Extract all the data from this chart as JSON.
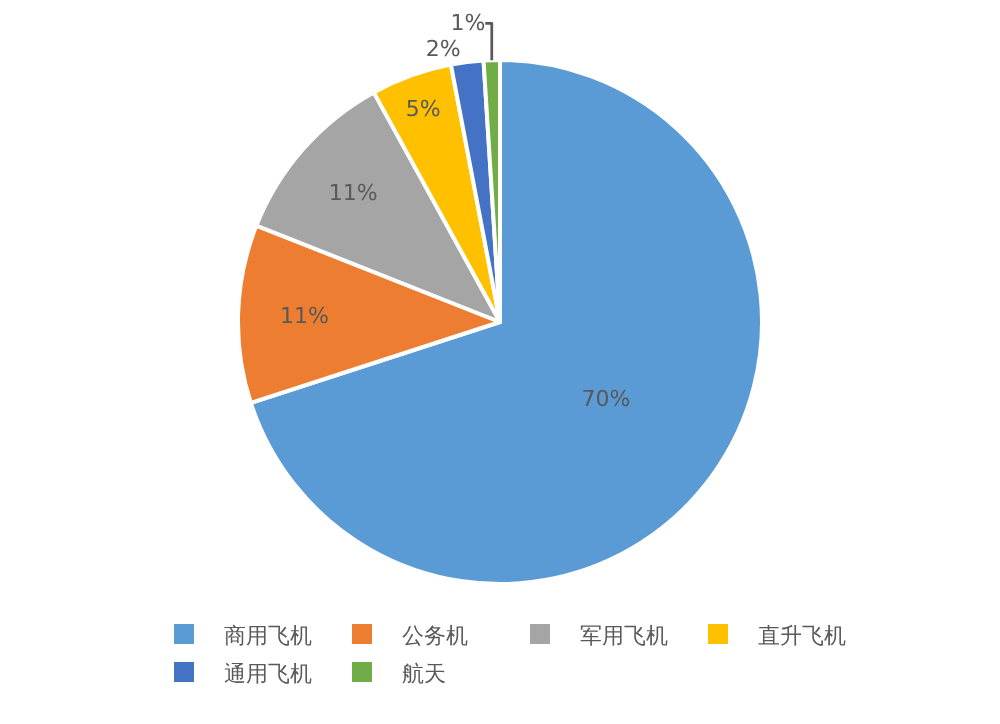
{
  "chart_data": {
    "type": "pie",
    "categories": [
      "商用飞机",
      "公务机",
      "军用飞机",
      "直升飞机",
      "通用飞机",
      "航天"
    ],
    "values": [
      70,
      11,
      11,
      5,
      2,
      1
    ],
    "value_labels": [
      "70%",
      "11%",
      "11%",
      "5%",
      "2%",
      "1%"
    ],
    "colors": [
      "#5b9bd5",
      "#ed7d31",
      "#a5a5a5",
      "#ffc000",
      "#4472c4",
      "#70ad47"
    ],
    "legend": "bottom"
  }
}
